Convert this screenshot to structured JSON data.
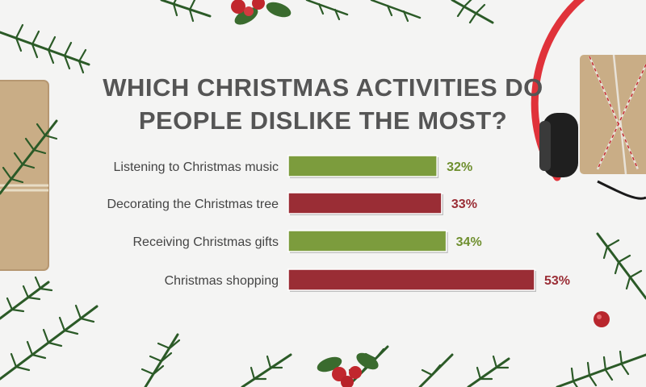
{
  "header": {
    "title_line1": "WHICH CHRISTMAS ACTIVITIES DO",
    "title_line2": "PEOPLE DISLIKE THE MOST?"
  },
  "colors": {
    "green_bar": "#7c9c3d",
    "red_bar": "#9a2d35",
    "title_text": "#555555",
    "background": "#f4f4f3"
  },
  "chart_data": {
    "type": "bar",
    "orientation": "horizontal",
    "title": "WHICH CHRISTMAS ACTIVITIES DO PEOPLE DISLIKE THE MOST?",
    "categories": [
      "Listening to Christmas music",
      "Decorating the Christmas tree",
      "Receiving Christmas gifts",
      "Christmas shopping"
    ],
    "values": [
      32,
      33,
      34,
      53
    ],
    "value_labels": [
      "32%",
      "33%",
      "34%",
      "53%"
    ],
    "bar_colors": [
      "#7c9c3d",
      "#9a2d35",
      "#7c9c3d",
      "#9a2d35"
    ],
    "xlim": [
      0,
      53
    ],
    "unit": "%",
    "grid": false,
    "legend": "none"
  },
  "decorations": [
    "fir-branch-icon",
    "holly-berries-icon",
    "wrapped-gift-icon",
    "red-headphones-icon",
    "red-berry-icon"
  ]
}
